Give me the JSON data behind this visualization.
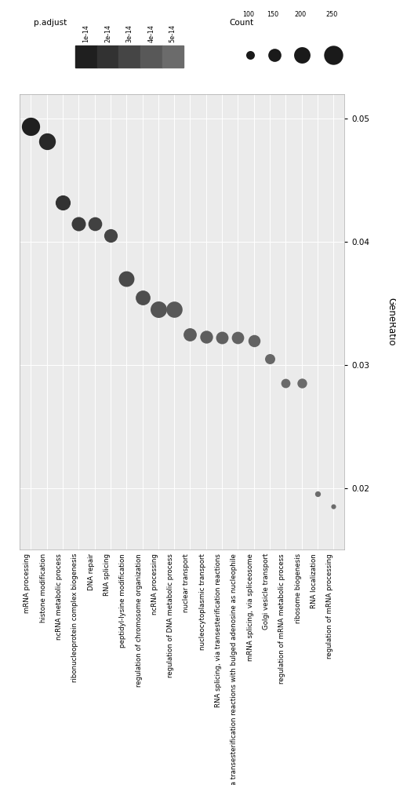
{
  "categories": [
    "mRNA processing",
    "histone modification",
    "ncRNA metabolic process",
    "ribonucleoprotein complex biogenesis",
    "DNA repair",
    "RNA splicing",
    "peptidyl-lysine modification",
    "regulation of chromosome organization",
    "ncRNA processing",
    "regulation of DNA metabolic process",
    "nuclear transport",
    "nucleocytoplasmic transport",
    "RNA splicing, via transesterification reactions",
    "RNA splicing, via transesterification reactions with bulged adenosine as nucleophile",
    "mRNA splicing, via spliceosome",
    "Golgi vesicle transport",
    "regulation of mRNA metabolic process",
    "ribosome biogenesis",
    "RNA localization",
    "regulation of mRNA processing"
  ],
  "gene_ratio": [
    0.0494,
    0.0482,
    0.0432,
    0.0415,
    0.0415,
    0.0405,
    0.037,
    0.0355,
    0.0345,
    0.0345,
    0.0325,
    0.0323,
    0.0322,
    0.0322,
    0.032,
    0.0305,
    0.0285,
    0.0285,
    0.0195,
    0.0185
  ],
  "count": [
    250,
    220,
    190,
    175,
    170,
    165,
    200,
    185,
    215,
    210,
    160,
    155,
    150,
    148,
    145,
    120,
    110,
    115,
    80,
    75
  ],
  "p_adjust": [
    1e-14,
    1.5e-14,
    2e-14,
    2.5e-14,
    2.8e-14,
    3e-14,
    3.2e-14,
    3.5e-14,
    3.8e-14,
    4e-14,
    4.2e-14,
    4.3e-14,
    4.4e-14,
    4.5e-14,
    4.6e-14,
    4.8e-14,
    4.9e-14,
    5e-14,
    5e-14,
    5e-14
  ],
  "ylim": [
    0.015,
    0.052
  ],
  "yticks": [
    0.02,
    0.03,
    0.04,
    0.05
  ],
  "background_color": "#ebebeb",
  "legend_padjust_labels": [
    "1e-14",
    "2e-14",
    "3e-14",
    "4e-14",
    "5e-14"
  ],
  "legend_padjust_values": [
    1e-14,
    2e-14,
    3e-14,
    4e-14,
    5e-14
  ],
  "legend_count_values": [
    100,
    150,
    200,
    250
  ],
  "ylabel": "GeneRatio",
  "count_min": 75,
  "count_max": 250,
  "size_min": 20,
  "size_max": 280,
  "p_min": 1e-14,
  "p_max": 5e-14,
  "gray_min": 0.12,
  "gray_max": 0.42
}
